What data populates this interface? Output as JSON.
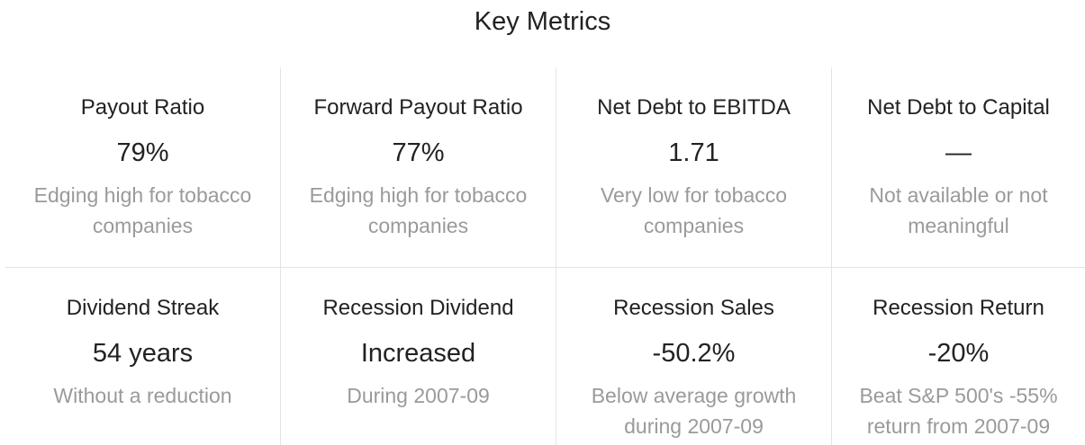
{
  "header": {
    "title": "Key Metrics"
  },
  "metrics": [
    {
      "label": "Payout Ratio",
      "value": "79%",
      "note": "Edging high for tobacco companies"
    },
    {
      "label": "Forward Payout Ratio",
      "value": "77%",
      "note": "Edging high for tobacco companies"
    },
    {
      "label": "Net Debt to EBITDA",
      "value": "1.71",
      "note": "Very low for tobacco companies"
    },
    {
      "label": "Net Debt to Capital",
      "value": "—",
      "note": "Not available or not meaningful"
    },
    {
      "label": "Dividend Streak",
      "value": "54 years",
      "note": "Without a reduction"
    },
    {
      "label": "Recession Dividend",
      "value": "Increased",
      "note": "During 2007-09"
    },
    {
      "label": "Recession Sales",
      "value": "-50.2%",
      "note": "Below average growth during 2007-09"
    },
    {
      "label": "Recession Return",
      "value": "-20%",
      "note": "Beat S&P 500's -55% return from 2007-09"
    }
  ]
}
